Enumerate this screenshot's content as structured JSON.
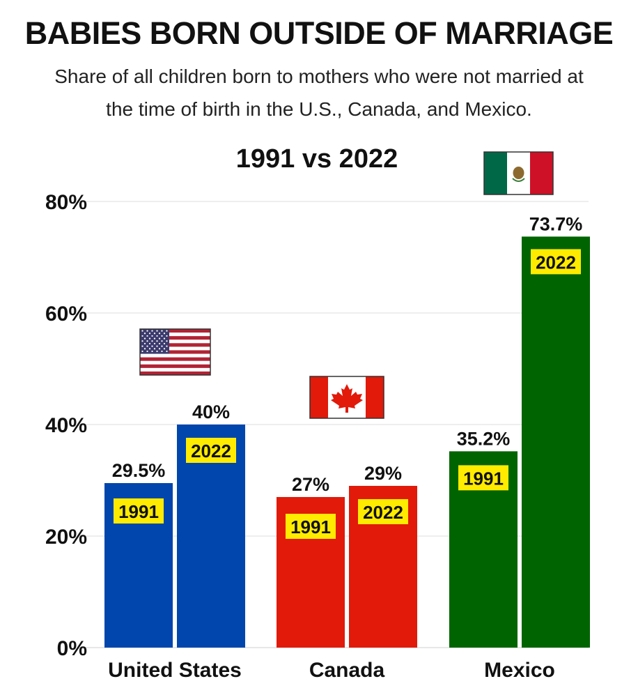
{
  "chart_data": {
    "type": "bar",
    "title": "BABIES BORN OUTSIDE OF MARRIAGE",
    "subtitle": "Share of all children born to mothers who were not married at the time of birth in the U.S., Canada, and Mexico.",
    "comparison_label": "1991 vs 2022",
    "categories": [
      "United States",
      "Canada",
      "Mexico"
    ],
    "series": [
      {
        "name": "1991",
        "values": [
          29.5,
          27,
          35.2
        ],
        "labels": [
          "29.5%",
          "27%",
          "35.2%"
        ]
      },
      {
        "name": "2022",
        "values": [
          40,
          29,
          73.7
        ],
        "labels": [
          "40%",
          "29%",
          "73.7%"
        ]
      }
    ],
    "bar_colors": [
      "#0046ad",
      "#e11a0a",
      "#006400"
    ],
    "year_badge_color": "#ffeb00",
    "ylim": [
      0,
      80
    ],
    "yticks": [
      0,
      20,
      40,
      60,
      80
    ],
    "ytick_labels": [
      "0%",
      "20%",
      "40%",
      "60%",
      "80%"
    ],
    "grid": true,
    "flags": [
      "us-flag",
      "canada-flag",
      "mexico-flag"
    ]
  }
}
